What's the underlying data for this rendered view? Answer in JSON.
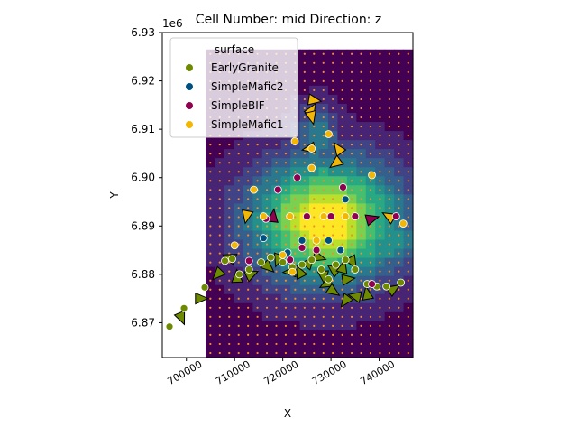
{
  "chart_data": {
    "type": "scatter",
    "title": "Cell Number: mid Direction: z",
    "xlabel": "X",
    "ylabel": "Y",
    "y_offset_label": "1e6",
    "xlim": [
      695000,
      747000
    ],
    "ylim": [
      6862800,
      6930000
    ],
    "x_ticks": [
      700000,
      710000,
      720000,
      730000,
      740000
    ],
    "x_tick_labels": [
      "700000",
      "710000",
      "720000",
      "730000",
      "740000"
    ],
    "y_ticks": [
      6.87,
      6.88,
      6.89,
      6.9,
      6.91,
      6.92,
      6.93
    ],
    "y_tick_labels": [
      "6.87",
      "6.88",
      "6.89",
      "6.90",
      "6.91",
      "6.92",
      "6.93"
    ],
    "legend": {
      "title": "surface",
      "placement": "top-left",
      "entries": [
        {
          "name": "EarlyGranite",
          "color": "#6e8a00"
        },
        {
          "name": "SimpleMafic2",
          "color": "#00507f"
        },
        {
          "name": "SimpleBIF",
          "color": "#8f0050"
        },
        {
          "name": "SimpleMafic1",
          "color": "#f2b705"
        }
      ]
    },
    "field": {
      "x_range": [
        704000,
        747000
      ],
      "y_range": [
        6862800,
        6926500
      ],
      "colormap": "viridis",
      "peak_x": 729000,
      "peak_y": 6891000
    },
    "series": [
      {
        "name": "EarlyGranite",
        "color": "#6e8a00",
        "points": [
          [
            696500,
            6869200
          ],
          [
            699500,
            6873000
          ],
          [
            703800,
            6877300
          ],
          [
            708000,
            6882800
          ],
          [
            709500,
            6883200
          ],
          [
            711000,
            6880000
          ],
          [
            713000,
            6881000
          ],
          [
            715500,
            6882500
          ],
          [
            717500,
            6883500
          ],
          [
            720000,
            6882500
          ],
          [
            722000,
            6881500
          ],
          [
            724000,
            6882000
          ],
          [
            726000,
            6883000
          ],
          [
            728000,
            6881000
          ],
          [
            729500,
            6879000
          ],
          [
            731000,
            6882000
          ],
          [
            733000,
            6883000
          ],
          [
            735000,
            6881000
          ],
          [
            737500,
            6878000
          ],
          [
            739500,
            6877500
          ],
          [
            741500,
            6877500
          ],
          [
            744500,
            6878300
          ]
        ]
      },
      {
        "name": "SimpleMafic2",
        "color": "#00507f",
        "points": [
          [
            716000,
            6887500
          ],
          [
            721000,
            6884500
          ],
          [
            724000,
            6887000
          ],
          [
            729500,
            6887000
          ],
          [
            732000,
            6885000
          ],
          [
            733000,
            6895500
          ]
        ]
      },
      {
        "name": "SimpleBIF",
        "color": "#8f0050",
        "points": [
          [
            713000,
            6882800
          ],
          [
            716500,
            6891500
          ],
          [
            719000,
            6897500
          ],
          [
            721500,
            6883000
          ],
          [
            723000,
            6900000
          ],
          [
            724000,
            6885500
          ],
          [
            725000,
            6892000
          ],
          [
            727000,
            6885000
          ],
          [
            730000,
            6892000
          ],
          [
            732500,
            6898000
          ],
          [
            735000,
            6892000
          ],
          [
            738500,
            6878000
          ],
          [
            743500,
            6892000
          ]
        ]
      },
      {
        "name": "SimpleMafic1",
        "color": "#f2b705",
        "points": [
          [
            710000,
            6886000
          ],
          [
            714000,
            6897500
          ],
          [
            716000,
            6892000
          ],
          [
            721500,
            6892000
          ],
          [
            722500,
            6907500
          ],
          [
            726000,
            6902000
          ],
          [
            726000,
            6906000
          ],
          [
            727000,
            6887000
          ],
          [
            728500,
            6892000
          ],
          [
            729500,
            6909000
          ],
          [
            733000,
            6892000
          ],
          [
            738500,
            6900500
          ],
          [
            745000,
            6890500
          ],
          [
            720000,
            6884000
          ],
          [
            722000,
            6880500
          ]
        ]
      }
    ],
    "orientation_markers": [
      {
        "x": 703000,
        "y": 6875000,
        "color": "#6e8a00"
      },
      {
        "x": 699000,
        "y": 6871000,
        "color": "#6e8a00"
      },
      {
        "x": 706500,
        "y": 6880000,
        "color": "#6e8a00"
      },
      {
        "x": 709000,
        "y": 6883500,
        "color": "#6e8a00"
      },
      {
        "x": 710500,
        "y": 6879500,
        "color": "#6e8a00"
      },
      {
        "x": 713500,
        "y": 6880000,
        "color": "#6e8a00"
      },
      {
        "x": 717000,
        "y": 6881500,
        "color": "#6e8a00"
      },
      {
        "x": 719000,
        "y": 6883000,
        "color": "#6e8a00"
      },
      {
        "x": 721500,
        "y": 6880500,
        "color": "#6e8a00"
      },
      {
        "x": 723500,
        "y": 6880500,
        "color": "#6e8a00"
      },
      {
        "x": 725500,
        "y": 6882500,
        "color": "#6e8a00"
      },
      {
        "x": 727500,
        "y": 6883500,
        "color": "#6e8a00"
      },
      {
        "x": 728500,
        "y": 6879500,
        "color": "#6e8a00"
      },
      {
        "x": 729000,
        "y": 6878000,
        "color": "#6e8a00"
      },
      {
        "x": 730500,
        "y": 6881000,
        "color": "#6e8a00"
      },
      {
        "x": 732500,
        "y": 6881500,
        "color": "#6e8a00"
      },
      {
        "x": 733500,
        "y": 6879000,
        "color": "#6e8a00"
      },
      {
        "x": 734500,
        "y": 6882500,
        "color": "#6e8a00"
      },
      {
        "x": 733000,
        "y": 6874500,
        "color": "#6e8a00"
      },
      {
        "x": 735000,
        "y": 6875500,
        "color": "#6e8a00"
      },
      {
        "x": 737500,
        "y": 6876000,
        "color": "#6e8a00"
      },
      {
        "x": 743000,
        "y": 6877000,
        "color": "#6e8a00"
      },
      {
        "x": 730500,
        "y": 6876500,
        "color": "#6e8a00"
      },
      {
        "x": 712500,
        "y": 6892000,
        "color": "#f2b705"
      },
      {
        "x": 725500,
        "y": 6906000,
        "color": "#f2b705"
      },
      {
        "x": 731500,
        "y": 6906000,
        "color": "#f2b705"
      },
      {
        "x": 726000,
        "y": 6914000,
        "color": "#f2b705"
      },
      {
        "x": 726500,
        "y": 6916000,
        "color": "#f2b705"
      },
      {
        "x": 726000,
        "y": 6912500,
        "color": "#f2b705"
      },
      {
        "x": 731000,
        "y": 6903000,
        "color": "#f2b705"
      },
      {
        "x": 742000,
        "y": 6892000,
        "color": "#f2b705"
      },
      {
        "x": 718000,
        "y": 6892000,
        "color": "#8f0050"
      },
      {
        "x": 738500,
        "y": 6891500,
        "color": "#8f0050"
      }
    ]
  }
}
